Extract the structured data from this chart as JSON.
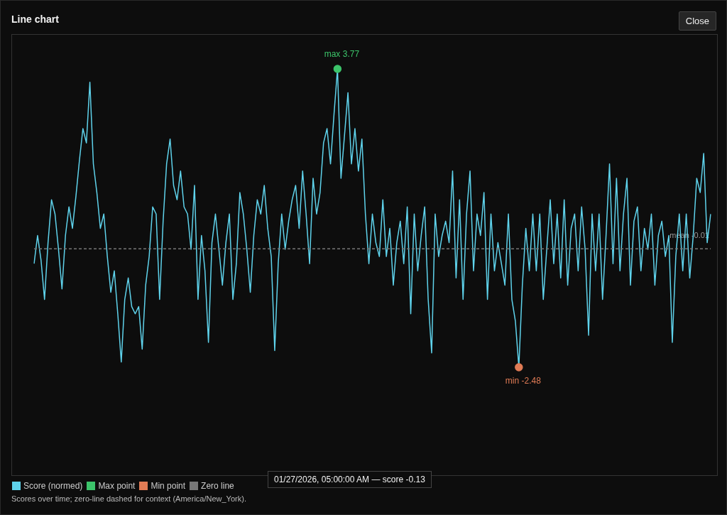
{
  "chart_data": {
    "type": "line",
    "title": "Line chart",
    "categories": [
      null,
      null,
      null,
      null,
      null,
      null,
      null,
      null,
      null,
      null,
      null,
      null,
      null,
      null,
      null,
      null,
      null,
      null,
      null,
      null,
      null,
      null,
      null,
      null,
      null,
      null,
      null,
      null,
      null,
      null,
      null,
      null,
      null,
      null,
      null,
      null,
      null,
      null,
      null,
      null,
      null,
      null,
      null,
      null,
      null,
      null,
      null,
      null,
      null,
      null,
      null,
      null,
      null,
      null,
      null,
      null,
      null,
      null,
      null,
      null,
      null,
      null,
      null,
      null,
      null,
      null,
      null,
      null,
      null,
      null,
      null,
      null,
      null,
      null,
      null,
      null,
      null,
      null,
      null,
      null,
      null,
      null,
      null,
      null,
      null,
      null,
      null,
      null,
      null,
      null,
      null,
      null,
      null,
      null,
      null,
      null,
      null,
      null,
      null,
      null,
      null,
      null,
      null,
      null,
      null,
      null,
      null,
      null,
      null,
      null,
      null,
      null,
      null,
      null,
      null,
      null,
      null,
      null,
      null,
      null,
      null,
      null,
      null,
      null,
      null,
      null,
      null,
      null,
      null,
      null,
      null,
      null,
      null,
      null,
      null,
      null,
      null,
      null,
      null,
      null,
      null,
      null,
      null,
      null,
      null,
      null,
      null,
      null,
      null,
      null,
      null,
      null,
      null,
      null,
      null,
      null,
      null,
      null,
      null,
      null,
      null,
      null,
      null,
      null,
      null,
      null,
      null,
      null,
      null,
      null,
      null,
      null,
      null,
      null,
      null,
      null,
      null,
      null,
      null,
      null,
      null,
      null,
      null,
      null,
      null,
      null,
      null,
      null,
      null,
      null,
      null,
      null,
      null,
      null,
      null
    ],
    "series": [
      {
        "name": "Score (normed)",
        "color": "#5fd3ec",
        "values": [
          -0.31,
          0.28,
          -0.24,
          -1.06,
          0.13,
          1.03,
          0.73,
          -0.01,
          -0.84,
          0.28,
          0.88,
          0.43,
          1.1,
          1.85,
          2.52,
          2.22,
          3.49,
          1.78,
          1.18,
          0.43,
          0.73,
          -0.16,
          -0.91,
          -0.46,
          -1.36,
          -2.37,
          -1.06,
          -0.61,
          -1.21,
          -1.36,
          -1.21,
          -2.1,
          -0.76,
          -0.16,
          0.88,
          0.73,
          -1.06,
          0.58,
          1.78,
          2.3,
          1.33,
          1.03,
          1.63,
          0.88,
          0.73,
          -0.01,
          1.33,
          -1.06,
          0.28,
          -0.46,
          -1.96,
          0.13,
          0.73,
          -0.01,
          -0.76,
          0.13,
          0.73,
          -1.06,
          -0.31,
          1.18,
          0.73,
          -0.01,
          -0.91,
          0.28,
          1.03,
          0.73,
          1.33,
          0.43,
          -0.16,
          -2.13,
          -0.31,
          0.73,
          -0.01,
          0.58,
          1.03,
          1.33,
          0.43,
          1.63,
          0.73,
          -0.31,
          1.48,
          0.73,
          1.18,
          2.22,
          2.52,
          1.78,
          2.82,
          3.77,
          1.48,
          2.37,
          3.27,
          1.78,
          2.52,
          1.63,
          2.3,
          0.73,
          -0.31,
          0.73,
          0.13,
          -0.16,
          1.03,
          -0.16,
          0.43,
          -0.76,
          0.13,
          0.58,
          -0.31,
          0.88,
          -1.36,
          0.73,
          -0.46,
          0.28,
          0.88,
          -1.06,
          -2.18,
          0.73,
          -0.16,
          0.28,
          0.58,
          0.13,
          1.63,
          -0.61,
          1.03,
          -1.06,
          0.73,
          1.63,
          -0.46,
          0.73,
          0.28,
          1.18,
          -1.06,
          0.73,
          -0.46,
          0.13,
          -0.31,
          -0.76,
          0.73,
          -1.06,
          -1.51,
          -2.48,
          -0.76,
          0.43,
          -0.46,
          0.73,
          -0.46,
          0.73,
          -1.06,
          -0.01,
          1.03,
          -0.31,
          0.73,
          -0.61,
          1.03,
          -0.76,
          0.43,
          0.73,
          -0.46,
          0.88,
          -0.01,
          -1.81,
          0.73,
          -0.46,
          0.73,
          -1.06,
          0.28,
          1.78,
          -0.31,
          1.48,
          -0.46,
          0.73,
          1.48,
          -0.76,
          0.58,
          0.88,
          -0.46,
          0.43,
          -0.01,
          0.73,
          -0.76,
          0.28,
          0.58,
          -0.16,
          0.28,
          -1.96,
          -0.16,
          0.73,
          -0.46,
          0.73,
          -0.61,
          0.28,
          1.48,
          1.18,
          2.0,
          0.13,
          0.73
        ]
      },
      {
        "name": "Max point",
        "type": "line",
        "marker": "circle",
        "color": "#3cc46a",
        "values": [
          null,
          null,
          null,
          null,
          null,
          null,
          null,
          null,
          null,
          null,
          null,
          null,
          null,
          null,
          null,
          null,
          null,
          null,
          null,
          null,
          null,
          null,
          null,
          null,
          null,
          null,
          null,
          null,
          null,
          null,
          null,
          null,
          null,
          null,
          null,
          null,
          null,
          null,
          null,
          null,
          null,
          null,
          null,
          null,
          null,
          null,
          null,
          null,
          null,
          null,
          null,
          null,
          null,
          null,
          null,
          null,
          null,
          null,
          null,
          null,
          null,
          null,
          null,
          null,
          null,
          null,
          null,
          null,
          null,
          null,
          null,
          null,
          null,
          null,
          null,
          null,
          null,
          null,
          null,
          null,
          null,
          null,
          null,
          null,
          null,
          null,
          null,
          3.77,
          null,
          null,
          null,
          null,
          null,
          null,
          null,
          null,
          null,
          null,
          null,
          null,
          null,
          null,
          null,
          null,
          null,
          null,
          null,
          null,
          null,
          null,
          null,
          null,
          null,
          null,
          null,
          null,
          null,
          null,
          null,
          null,
          null,
          null,
          null,
          null,
          null,
          null,
          null,
          null,
          null,
          null,
          null,
          null,
          null,
          null,
          null,
          null,
          null,
          null,
          null,
          null,
          null,
          null,
          null,
          null,
          null,
          null,
          null,
          null,
          null,
          null,
          null,
          null,
          null,
          null,
          null,
          null,
          null,
          null,
          null,
          null,
          null,
          null,
          null,
          null,
          null,
          null,
          null,
          null,
          null,
          null,
          null,
          null,
          null,
          null,
          null,
          null,
          null,
          null,
          null,
          null,
          null,
          null,
          null,
          null,
          null,
          null,
          null,
          null,
          null,
          null,
          null,
          null,
          null,
          null,
          null
        ],
        "value_labels": [
          null,
          null,
          null,
          null,
          null,
          null,
          null,
          null,
          null,
          null,
          null,
          null,
          null,
          null,
          null,
          null,
          null,
          null,
          null,
          null,
          null,
          null,
          null,
          null,
          null,
          null,
          null,
          null,
          null,
          null,
          null,
          null,
          null,
          null,
          null,
          null,
          null,
          null,
          null,
          null,
          null,
          null,
          null,
          null,
          null,
          null,
          null,
          null,
          null,
          null,
          null,
          null,
          null,
          null,
          null,
          null,
          null,
          null,
          null,
          null,
          null,
          null,
          null,
          null,
          null,
          null,
          null,
          null,
          null,
          null,
          null,
          null,
          null,
          null,
          null,
          null,
          null,
          null,
          null,
          null,
          null,
          null,
          null,
          null,
          null,
          null,
          null,
          "max 3.77",
          null,
          null,
          null,
          null,
          null,
          null,
          null,
          null,
          null,
          null,
          null,
          null,
          null,
          null,
          null,
          null,
          null,
          null,
          null,
          null,
          null,
          null,
          null,
          null,
          null,
          null,
          null,
          null,
          null,
          null,
          null,
          null,
          null,
          null,
          null,
          null,
          null,
          null,
          null,
          null,
          null,
          null,
          null,
          null,
          null,
          null,
          null,
          null,
          null,
          null,
          null,
          null,
          null,
          null,
          null,
          null,
          null,
          null,
          null,
          null,
          null,
          null,
          null,
          null,
          null,
          null,
          null,
          null,
          null,
          null,
          null,
          null,
          null,
          null,
          null,
          null,
          null,
          null,
          null,
          null,
          null,
          null,
          null,
          null,
          null,
          null,
          null,
          null,
          null,
          null,
          null,
          null,
          null,
          null,
          null,
          null,
          null,
          null,
          null,
          null,
          null,
          null,
          null,
          null,
          null,
          null,
          null
        ]
      },
      {
        "name": "Min point",
        "type": "line",
        "marker": "circle",
        "color": "#e07b55",
        "values": [
          null,
          null,
          null,
          null,
          null,
          null,
          null,
          null,
          null,
          null,
          null,
          null,
          null,
          null,
          null,
          null,
          null,
          null,
          null,
          null,
          null,
          null,
          null,
          null,
          null,
          null,
          null,
          null,
          null,
          null,
          null,
          null,
          null,
          null,
          null,
          null,
          null,
          null,
          null,
          null,
          null,
          null,
          null,
          null,
          null,
          null,
          null,
          null,
          null,
          null,
          null,
          null,
          null,
          null,
          null,
          null,
          null,
          null,
          null,
          null,
          null,
          null,
          null,
          null,
          null,
          null,
          null,
          null,
          null,
          null,
          null,
          null,
          null,
          null,
          null,
          null,
          null,
          null,
          null,
          null,
          null,
          null,
          null,
          null,
          null,
          null,
          null,
          null,
          null,
          null,
          null,
          null,
          null,
          null,
          null,
          null,
          null,
          null,
          null,
          null,
          null,
          null,
          null,
          null,
          null,
          null,
          null,
          null,
          null,
          null,
          null,
          null,
          null,
          null,
          null,
          null,
          null,
          null,
          null,
          null,
          null,
          null,
          null,
          null,
          null,
          null,
          null,
          null,
          null,
          null,
          null,
          null,
          null,
          null,
          null,
          null,
          null,
          null,
          null,
          -2.48,
          null,
          null,
          null,
          null,
          null,
          null,
          null,
          null,
          null,
          null,
          null,
          null,
          null,
          null,
          null,
          null,
          null,
          null,
          null,
          null,
          null,
          null,
          null,
          null,
          null,
          null,
          null,
          null,
          null,
          null,
          null,
          null,
          null,
          null,
          null,
          null,
          null,
          null,
          null,
          null,
          null,
          null,
          null,
          null,
          null,
          null,
          null,
          null,
          null,
          null,
          null,
          null,
          null,
          null,
          null
        ],
        "value_labels": [
          null,
          null,
          null,
          null,
          null,
          null,
          null,
          null,
          null,
          null,
          null,
          null,
          null,
          null,
          null,
          null,
          null,
          null,
          null,
          null,
          null,
          null,
          null,
          null,
          null,
          null,
          null,
          null,
          null,
          null,
          null,
          null,
          null,
          null,
          null,
          null,
          null,
          null,
          null,
          null,
          null,
          null,
          null,
          null,
          null,
          null,
          null,
          null,
          null,
          null,
          null,
          null,
          null,
          null,
          null,
          null,
          null,
          null,
          null,
          null,
          null,
          null,
          null,
          null,
          null,
          null,
          null,
          null,
          null,
          null,
          null,
          null,
          null,
          null,
          null,
          null,
          null,
          null,
          null,
          null,
          null,
          null,
          null,
          null,
          null,
          null,
          null,
          null,
          null,
          null,
          null,
          null,
          null,
          null,
          null,
          null,
          null,
          null,
          null,
          null,
          null,
          null,
          null,
          null,
          null,
          null,
          null,
          null,
          null,
          null,
          null,
          null,
          null,
          null,
          null,
          null,
          null,
          null,
          null,
          null,
          null,
          null,
          null,
          null,
          null,
          null,
          null,
          null,
          null,
          null,
          null,
          null,
          null,
          null,
          null,
          null,
          null,
          null,
          null,
          "min -2.48",
          null,
          null,
          null,
          null,
          null,
          null,
          null,
          null,
          null,
          null,
          null,
          null,
          null,
          null,
          null,
          null,
          null,
          null,
          null,
          null,
          null,
          null,
          null,
          null,
          null,
          null,
          null,
          null,
          null,
          null,
          null,
          null,
          null,
          null,
          null,
          null,
          null,
          null,
          null,
          null,
          null,
          null,
          null,
          null,
          null,
          null,
          null,
          null,
          null,
          null,
          null,
          null,
          null,
          null,
          null
        ]
      }
    ],
    "ref_lines": [
      {
        "axis": "y",
        "value": 0,
        "label": "Zero line",
        "color": "#777777",
        "line_style": "dashed"
      }
    ],
    "tick_labels": false,
    "legend": "bottom left",
    "annotations": [
      {
        "text": "mean -0.01",
        "y": -0.01
      },
      "Close",
      "01/27/2026, 05:00:00 AM — score -0.13",
      "Scores over time; zero-line dashed for context (America/New_York)."
    ]
  }
}
